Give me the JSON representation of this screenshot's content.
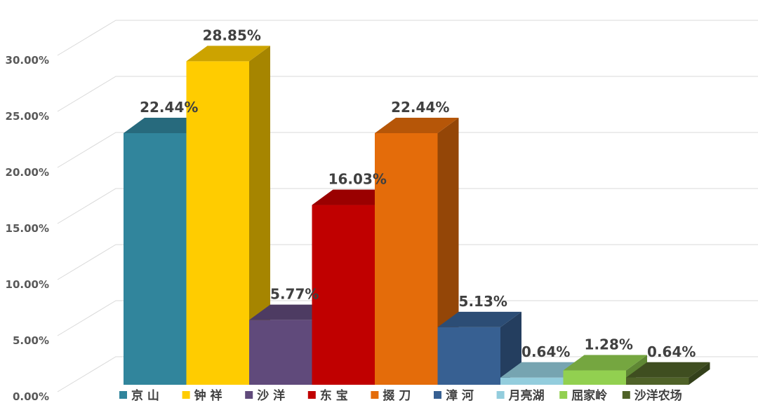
{
  "chart_data": {
    "type": "bar",
    "title": "",
    "xlabel": "",
    "ylabel": "",
    "ylim": [
      0,
      0.3
    ],
    "y_tick_step": 0.05,
    "y_tick_labels": [
      "0.00%",
      "5.00%",
      "10.00%",
      "15.00%",
      "20.00%",
      "25.00%",
      "30.00%"
    ],
    "categories": [
      "京 山",
      "钟 祥",
      "沙 洋",
      "东 宝",
      "掇 刀",
      "漳 河",
      "月亮湖",
      "屈家岭",
      "沙洋农场"
    ],
    "values": [
      0.2244,
      0.2885,
      0.0577,
      0.1603,
      0.2244,
      0.0513,
      0.0064,
      0.0128,
      0.0064
    ],
    "value_labels": [
      "22.44%",
      "28.85%",
      "5.77%",
      "16.03%",
      "22.44%",
      "5.13%",
      "0.64%",
      "1.28%",
      "0.64%"
    ],
    "colors": [
      "#31859c",
      "#ffcc00",
      "#604a7b",
      "#c00000",
      "#e46c0a",
      "#376092",
      "#93cddd",
      "#92d050",
      "#4f6228"
    ],
    "legend_position": "bottom",
    "grid": true,
    "style": "3d-column"
  }
}
